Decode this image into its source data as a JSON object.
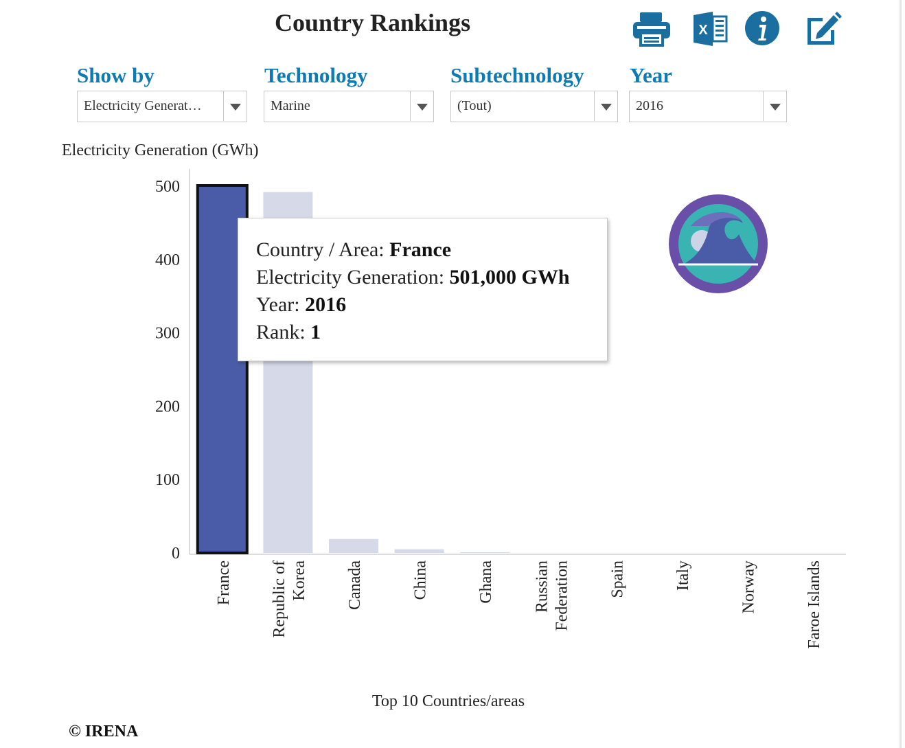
{
  "header": {
    "title": "Country Rankings"
  },
  "toolbar": {
    "buttons": [
      {
        "icon": "printer-icon",
        "color": "#1a6fa0"
      },
      {
        "icon": "excel-icon",
        "color": "#1a6fa0"
      },
      {
        "icon": "info-icon",
        "color": "#1a6fa0"
      },
      {
        "icon": "edit-icon",
        "color": "#1a6fa0"
      }
    ]
  },
  "filters": {
    "show_by": {
      "label": "Show by",
      "value": "Electricity Generat…"
    },
    "technology": {
      "label": "Technology",
      "value": "Marine"
    },
    "subtechnology": {
      "label": "Subtechnology",
      "value": "(Tout)"
    },
    "year": {
      "label": "Year",
      "value": "2016"
    }
  },
  "tooltip": {
    "country_label": "Country / Area: ",
    "country_value": "France",
    "generation_label": "Electricity Generation: ",
    "generation_value": "501,000 GWh",
    "year_label": "Year: ",
    "year_value": "2016",
    "rank_label": "Rank: ",
    "rank_value": "1"
  },
  "badge": {
    "icon": "marine-wave-icon",
    "colors": {
      "ring": "#6a4fa8",
      "inner": "#3ab3b3",
      "wave": "#4a5ba8"
    }
  },
  "chart_data": {
    "type": "bar",
    "title": "",
    "ylabel": "Electricity Generation (GWh)",
    "xlabel": "Top 10 Countries/areas",
    "ylim": [
      0,
      501
    ],
    "yticks": [
      0,
      100,
      200,
      300,
      400,
      500
    ],
    "categories": [
      "France",
      "Republic of Korea",
      "Canada",
      "China",
      "Ghana",
      "Russian Federation",
      "Spain",
      "Italy",
      "Norway",
      "Faroe Islands"
    ],
    "category_lines": [
      [
        "France"
      ],
      [
        "Republic of",
        "Korea"
      ],
      [
        "Canada"
      ],
      [
        "China"
      ],
      [
        "Ghana"
      ],
      [
        "Russian",
        "Federation"
      ],
      [
        "Spain"
      ],
      [
        "Italy"
      ],
      [
        "Norway"
      ],
      [
        "Faroe Islands"
      ]
    ],
    "values": [
      501,
      492,
      19,
      5,
      1,
      0,
      0,
      0,
      0,
      0
    ],
    "highlight_index": 0,
    "colors": {
      "highlight": "#4a5ca8",
      "bar": "#d5d9e8",
      "highlight_border": "#111111"
    }
  },
  "footer": {
    "copyright": "© IRENA"
  }
}
